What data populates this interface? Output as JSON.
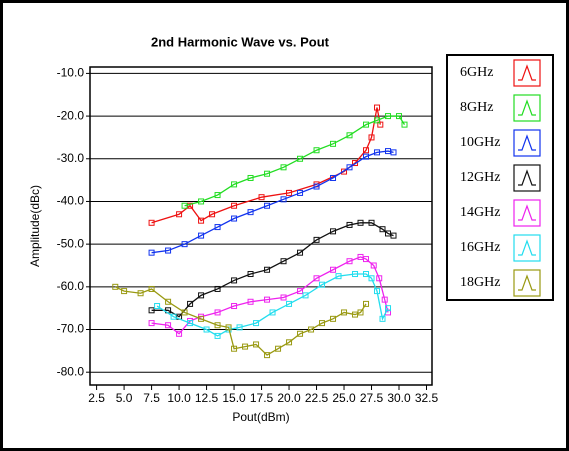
{
  "chart_data": {
    "type": "line",
    "title": "2nd Harmonic Wave vs. Pout",
    "x_label": "Pout(dBm)",
    "y_label": "Amplitude(dBc)",
    "xlim": [
      1.9,
      33
    ],
    "ylim": [
      -83,
      -8.5
    ],
    "xticks": [
      2.5,
      {
        "value": 5,
        "label": "5.0"
      },
      7.5,
      {
        "value": 10,
        "label": "10.0"
      },
      12.5,
      {
        "value": 15,
        "label": "15.0"
      },
      17.5,
      {
        "value": 20,
        "label": "20.0"
      },
      22.5,
      {
        "value": 25,
        "label": "25.0"
      },
      27.5,
      {
        "value": 30,
        "label": "30.0"
      },
      32.5
    ],
    "yticks": [
      {
        "value": -10,
        "label": "-10.0"
      },
      {
        "value": -20,
        "label": "-20.0"
      },
      {
        "value": -30,
        "label": "-30.0"
      },
      {
        "value": -40,
        "label": "-40.0"
      },
      {
        "value": -50,
        "label": "-50.0"
      },
      {
        "value": -60,
        "label": "-60.0"
      },
      {
        "value": -70,
        "label": "-70.0"
      },
      {
        "value": -80,
        "label": "-80.0"
      }
    ],
    "grid": true,
    "series": [
      {
        "name": "6GHz",
        "color": "#ee1111",
        "x": [
          7.5,
          10,
          11,
          12,
          13,
          15,
          17.5,
          20,
          22.5,
          25,
          26,
          27,
          27.5,
          28,
          28.3
        ],
        "values": [
          -45,
          -43,
          -41,
          -44.5,
          -43,
          -41,
          -39,
          -38,
          -36,
          -33,
          -31,
          -28,
          -25,
          -18,
          -22
        ]
      },
      {
        "name": "8GHz",
        "color": "#22dd22",
        "x": [
          10.5,
          12,
          13.5,
          15,
          16.5,
          18,
          19.5,
          21,
          22.5,
          24,
          25.5,
          27,
          28,
          29,
          30,
          30.5
        ],
        "values": [
          -41,
          -40,
          -38.5,
          -36,
          -34.5,
          -33.5,
          -32,
          -30,
          -28,
          -26.5,
          -24.5,
          -22,
          -21,
          -20,
          -20,
          -22
        ]
      },
      {
        "name": "10GHz",
        "color": "#1133ee",
        "x": [
          7.5,
          9,
          10.5,
          12,
          13.5,
          15,
          16.5,
          18,
          19.5,
          21,
          22.5,
          24,
          25.5,
          27,
          28,
          29,
          29.5
        ],
        "values": [
          -52,
          -51.5,
          -50,
          -48,
          -46,
          -44,
          -42.5,
          -41,
          -39.5,
          -38,
          -36.5,
          -34.5,
          -32,
          -29.5,
          -28.5,
          -28.2,
          -28.5
        ]
      },
      {
        "name": "12GHz",
        "color": "#111111",
        "x": [
          7.5,
          9,
          10,
          11,
          12,
          13.5,
          15,
          16.5,
          18,
          19.5,
          21,
          22.5,
          24,
          25.5,
          26.5,
          27.5,
          28.5,
          29,
          29.5
        ],
        "values": [
          -65.5,
          -65.5,
          -67,
          -64,
          -62,
          -60.5,
          -58.5,
          -57,
          -56,
          -54,
          -52,
          -49,
          -47,
          -45.5,
          -45,
          -45,
          -46.5,
          -47.5,
          -48
        ]
      },
      {
        "name": "14GHz",
        "color": "#ee22ee",
        "x": [
          7.5,
          9,
          10,
          11,
          12,
          13.5,
          15,
          16.5,
          18,
          19.5,
          21,
          22.5,
          24,
          25.5,
          26.5,
          27,
          27.7,
          28.2,
          28.7,
          29
        ],
        "values": [
          -68.5,
          -69,
          -71,
          -68,
          -67,
          -66,
          -64.5,
          -63.5,
          -63,
          -62.5,
          -61,
          -58,
          -56,
          -54,
          -53,
          -53.5,
          -55,
          -58,
          -63,
          -66
        ]
      },
      {
        "name": "16GHz",
        "color": "#22ddee",
        "x": [
          8,
          9.5,
          11,
          12.5,
          13.5,
          14.5,
          15.5,
          17,
          18.5,
          20,
          21.5,
          23,
          24.5,
          26,
          27,
          27.5,
          28,
          28.5,
          29
        ],
        "values": [
          -64.5,
          -67,
          -68.5,
          -70,
          -71.5,
          -70,
          -69.5,
          -68.5,
          -66,
          -64,
          -62,
          -59.5,
          -57.5,
          -57,
          -57,
          -58,
          -61,
          -67.5,
          -65
        ]
      },
      {
        "name": "18GHz",
        "color": "#999911",
        "x": [
          4.2,
          5,
          6.5,
          7.5,
          9,
          10.5,
          12,
          13.5,
          14.5,
          15,
          16,
          17,
          18,
          19,
          20,
          21,
          22,
          23,
          24,
          25,
          26,
          26.5,
          27
        ],
        "values": [
          -60,
          -61,
          -61.5,
          -60.5,
          -63.5,
          -66,
          -67.5,
          -69,
          -69.5,
          -74.5,
          -74,
          -73.5,
          -76,
          -74.5,
          -73,
          -71,
          -70,
          -68.5,
          -67.5,
          -66,
          -66.5,
          -66,
          -64
        ]
      }
    ]
  }
}
